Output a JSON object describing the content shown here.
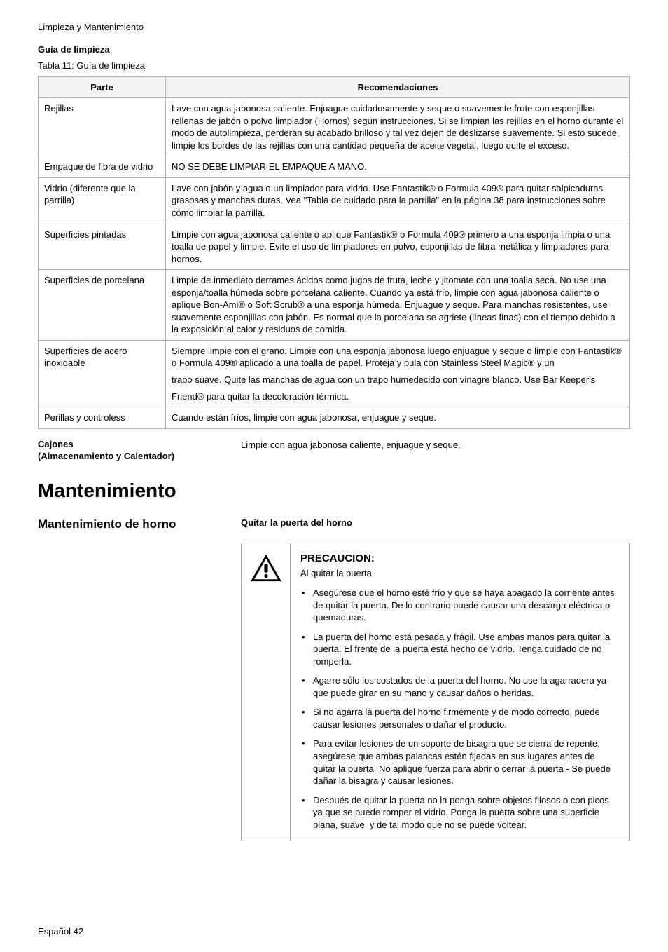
{
  "breadcrumb": "Limpieza y Mantenimiento",
  "sectionTitle": "Guía de limpieza",
  "tableCaption": "Tabla 11:  Guía de limpieza",
  "headers": {
    "col1": "Parte",
    "col2": "Recomendaciones"
  },
  "rows": [
    {
      "part": "Rejillas",
      "rec": "Lave con agua jabonosa caliente.  Enjuague cuidadosamente y seque o suavemente frote con esponjillas rellenas de jabón o polvo limpiador (Hornos) según instrucciones. Si se limpian las rejillas en el horno durante el modo de autolimpieza, perderán su acabado brilloso y tal vez dejen de deslizarse suavemente. Si esto sucede, limpie los bordes de las rejillas con una cantidad pequeña de aceite vegetal, luego quite el exceso."
    },
    {
      "part": "Empaque de fibra de vidrio",
      "rec": "NO SE DEBE LIMPIAR EL EMPAQUE A MANO."
    },
    {
      "part": "Vidrio (diferente que la parrilla)",
      "rec": "Lave con jabón y agua o un limpiador para vidrio. Use Fantastik® o Formula 409® para quitar salpicaduras grasosas y manchas duras. Vea \"Tabla de cuidado para la parrilla\" en la página 38 para instrucciones sobre cómo limpiar la parrilla."
    },
    {
      "part": "Superficies pintadas",
      "rec": "Limpie con agua jabonosa caliente o aplique Fantastik® o Formula 409® primero a una esponja limpia o una toalla de papel y limpie.  Evite el uso de limpiadores en polvo, esponjillas de fibra metálica y limpiadores para hornos."
    },
    {
      "part": "Superficies de porcelana",
      "rec": "Limpie de inmediato derrames ácidos como jugos de fruta, leche y jitomate con una toalla seca. No use una esponja/toalla húmeda sobre porcelana caliente. Cuando ya está frío, limpie con agua jabonosa caliente o aplique Bon-Ami® o Soft Scrub® a una esponja húmeda.  Enjuague y seque.  Para manchas resistentes, use suavemente esponjillas con jabón. Es normal que la porcelana se agriete (líneas finas) con el tiempo debido a la exposición al calor y residuos de comida."
    },
    {
      "part": "Superficies de acero inoxidable",
      "recMulti": [
        "Siempre limpie con el grano.  Limpie con una esponja jabonosa luego enjuague y seque o limpie con Fantastik® o Formula 409® aplicado a una toalla de papel.  Proteja y pula con Stainless Steel Magic® y un",
        "trapo suave. Quite las manchas de agua con un trapo humedecido con vinagre blanco. Use  Bar Keeper's",
        "Friend® para quitar la decoloración térmica."
      ]
    },
    {
      "part": "Perillas y controless",
      "rec": "Cuando están fríos, limpie con agua jabonosa, enjuague y seque."
    }
  ],
  "drawers": {
    "label1": "Cajones",
    "label2": "(Almacenamiento y Calentador)",
    "text": "Limpie con agua jabonosa caliente, enjuague y seque."
  },
  "mainHeading": "Mantenimiento",
  "maintLeft": "Mantenimiento de horno",
  "maintRight": "Quitar la puerta del horno",
  "caution": {
    "title": "PRECAUCION:",
    "sub": "Al quitar la puerta.",
    "items": [
      "Asegúrese que el horno esté frío y que se haya apagado la corriente antes de quitar la puerta. De lo contrario puede causar una descarga eléctrica o quemaduras.",
      "La puerta del horno está pesada y frágil. Use ambas manos para quitar la puerta. El frente de la puerta está hecho de vidrio. Tenga cuidado de no romperla.",
      "Agarre sólo los costados de la puerta del horno. No use la agarradera ya que puede girar en su mano y causar daños o heridas.",
      "Si no agarra la puerta del horno firmemente y de modo correcto, puede causar lesiones personales o dañar el producto.",
      "Para evitar lesiones de un soporte de bisagra que se cierra de repente, asegúrese que ambas palancas estén fijadas en sus lugares antes de quitar la puerta. No aplique fuerza para abrir o cerrar la puerta - Se puede dañar la bisagra y causar lesiones.",
      "Después de quitar la puerta no la ponga sobre objetos filosos o con picos ya que se puede romper el vidrio. Ponga la puerta sobre una superficie plana, suave, y de tal modo que no se puede voltear."
    ]
  },
  "footer": "Español 42"
}
